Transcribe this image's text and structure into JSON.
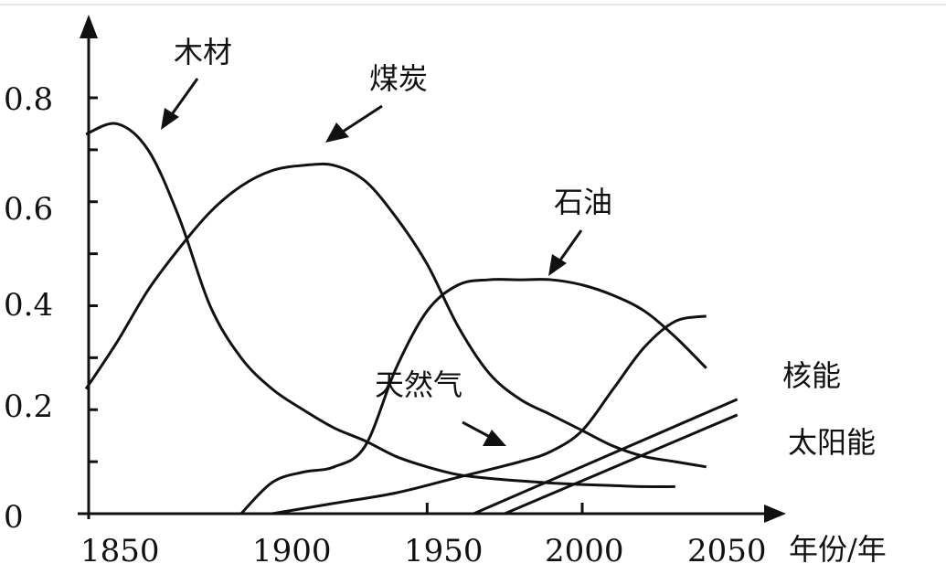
{
  "chart_data": {
    "type": "line",
    "title": "",
    "xlabel": "年份/年",
    "ylabel": "",
    "xlim": [
      1840,
      2055
    ],
    "ylim": [
      0,
      0.95
    ],
    "x_ticks": [
      1850,
      1900,
      1950,
      2000,
      2050
    ],
    "x_tick_labels": [
      "1850",
      "1900",
      "1950",
      "2000",
      "2050"
    ],
    "y_ticks": [
      0,
      0.2,
      0.4,
      0.6,
      0.8
    ],
    "y_tick_labels": [
      "0",
      "0.2",
      "0.4",
      "0.6",
      "0.8"
    ],
    "grid": false,
    "legend": "none (series labelled directly with arrows)",
    "series": [
      {
        "name": "木材",
        "x": [
          1840,
          1850,
          1860,
          1870,
          1880,
          1890,
          1900,
          1910,
          1920,
          1930,
          1940,
          1950,
          1960,
          1970,
          1980,
          1990,
          2000,
          2010,
          2020,
          2030
        ],
        "values": [
          0.73,
          0.75,
          0.7,
          0.57,
          0.4,
          0.3,
          0.24,
          0.2,
          0.165,
          0.14,
          0.11,
          0.09,
          0.075,
          0.068,
          0.063,
          0.059,
          0.056,
          0.054,
          0.052,
          0.052
        ]
      },
      {
        "name": "煤炭",
        "x": [
          1840,
          1850,
          1860,
          1870,
          1880,
          1890,
          1900,
          1910,
          1920,
          1930,
          1940,
          1950,
          1960,
          1970,
          1980,
          1990,
          2000,
          2010,
          2020,
          2030,
          2040
        ],
        "values": [
          0.24,
          0.33,
          0.43,
          0.51,
          0.58,
          0.63,
          0.66,
          0.67,
          0.67,
          0.64,
          0.57,
          0.48,
          0.36,
          0.27,
          0.22,
          0.19,
          0.16,
          0.13,
          0.11,
          0.1,
          0.09
        ]
      },
      {
        "name": "石油",
        "x": [
          1890,
          1900,
          1910,
          1920,
          1930,
          1940,
          1950,
          1960,
          1970,
          1980,
          1990,
          2000,
          2010,
          2020,
          2030,
          2040
        ],
        "values": [
          0.0,
          0.06,
          0.08,
          0.09,
          0.13,
          0.28,
          0.39,
          0.44,
          0.45,
          0.45,
          0.45,
          0.44,
          0.42,
          0.39,
          0.34,
          0.28
        ]
      },
      {
        "name": "天然气",
        "x": [
          1900,
          1920,
          1940,
          1960,
          1980,
          1990,
          2000,
          2010,
          2020,
          2030,
          2040
        ],
        "values": [
          0.0,
          0.02,
          0.04,
          0.07,
          0.1,
          0.12,
          0.16,
          0.24,
          0.32,
          0.37,
          0.38
        ]
      },
      {
        "name": "核能",
        "x": [
          1965,
          2000,
          2040,
          2050
        ],
        "values": [
          0.0,
          0.08,
          0.19,
          0.22
        ]
      },
      {
        "name": "太阳能",
        "x": [
          1975,
          2000,
          2040,
          2050
        ],
        "values": [
          0.0,
          0.06,
          0.16,
          0.19
        ]
      }
    ],
    "annotations": [
      {
        "text": "木材",
        "target_series": "木材"
      },
      {
        "text": "煤炭",
        "target_series": "煤炭"
      },
      {
        "text": "石油",
        "target_series": "石油"
      },
      {
        "text": "天然气",
        "target_series": "天然气"
      },
      {
        "text": "核能",
        "target_series": "核能"
      },
      {
        "text": "太阳能",
        "target_series": "太阳能"
      }
    ],
    "colors": {
      "line": "#111111",
      "background": "#ffffff"
    }
  }
}
